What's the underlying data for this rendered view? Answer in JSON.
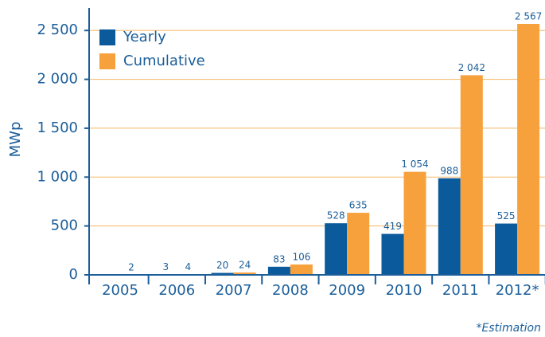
{
  "chart_data": {
    "type": "bar",
    "y_label": "MWp",
    "footnote": "*Estimation",
    "categories": [
      "2005",
      "2006",
      "2007",
      "2008",
      "2009",
      "2010",
      "2011",
      "2012*"
    ],
    "series": [
      {
        "name": "Yearly",
        "color": "#0a5a9c",
        "values": [
          null,
          3,
          20,
          83,
          528,
          419,
          988,
          525
        ],
        "value_labels": [
          null,
          "3",
          "20",
          "83",
          "528",
          "419",
          "988",
          "525"
        ]
      },
      {
        "name": "Cumulative",
        "color": "#f7a13d",
        "values": [
          2,
          4,
          24,
          106,
          635,
          1054,
          2042,
          2567
        ],
        "value_labels": [
          "2",
          "4",
          "24",
          "106",
          "635",
          "1 054",
          "2 042",
          "2 567"
        ]
      }
    ],
    "ylim": [
      0,
      2730
    ],
    "yticks": [
      0,
      {
        "value": 500,
        "label": "500"
      },
      {
        "value": 1000,
        "label": "1 000"
      },
      {
        "value": 1500,
        "label": "1 500"
      },
      {
        "value": 2000,
        "label": "2 000"
      },
      {
        "value": 2500,
        "label": "2 500"
      }
    ],
    "grid": true,
    "legend": "top-left"
  }
}
